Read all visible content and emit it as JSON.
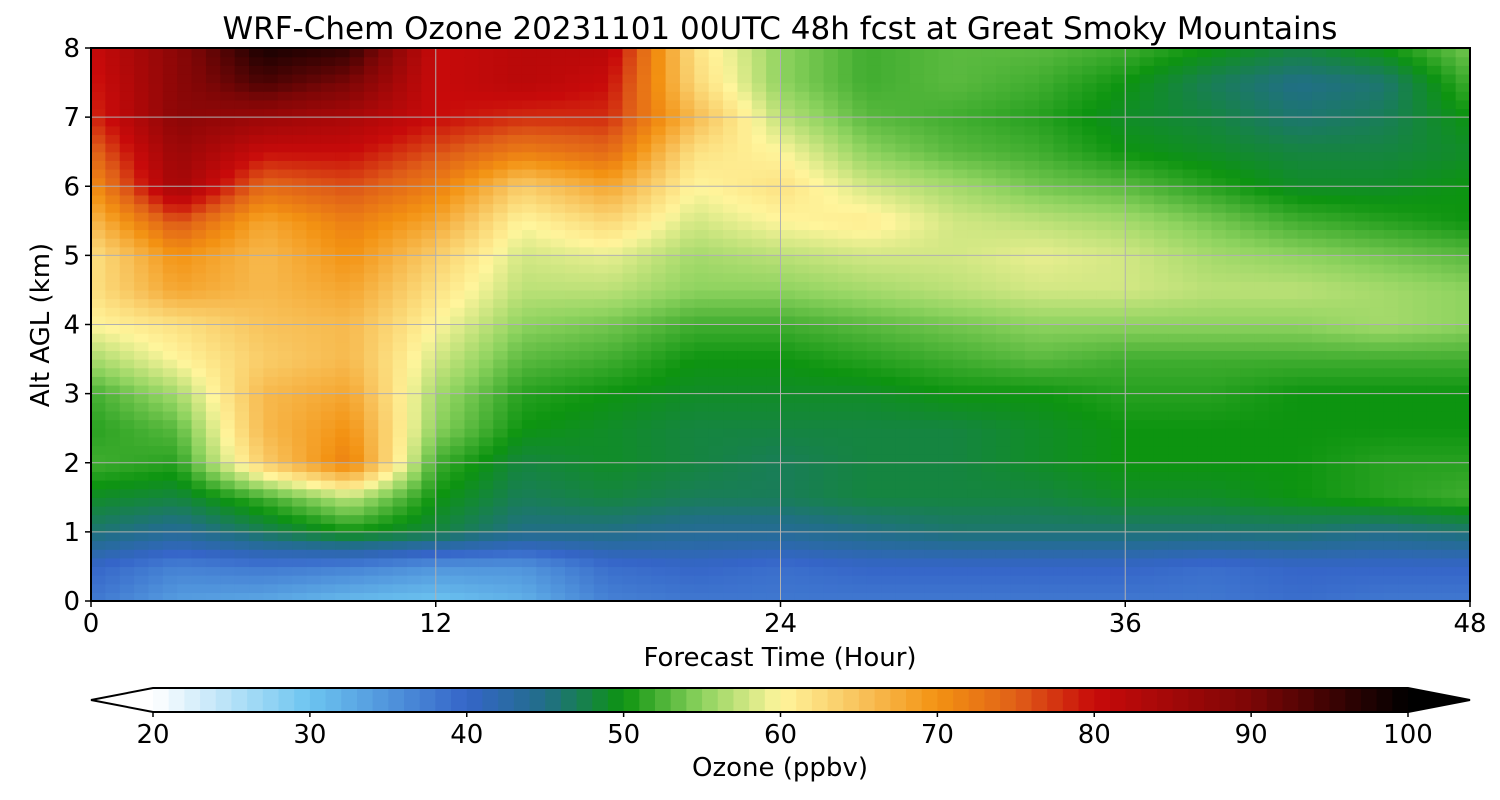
{
  "chart_data": {
    "type": "heatmap",
    "title": "WRF-Chem Ozone  20231101 00UTC 48h fcst at Great Smoky Mountains",
    "xlabel": "Forecast Time (Hour)",
    "ylabel": "Alt AGL (km)",
    "xlim": [
      0,
      48
    ],
    "ylim": [
      0,
      8
    ],
    "x_ticks": [
      "0",
      "12",
      "24",
      "36",
      "48"
    ],
    "y_ticks": [
      "0",
      "1",
      "2",
      "3",
      "4",
      "5",
      "6",
      "7",
      "8"
    ],
    "grid": true,
    "x": [
      0,
      3,
      6,
      9,
      12,
      15,
      18,
      21,
      24,
      27,
      30,
      33,
      36,
      39,
      42,
      45,
      48
    ],
    "y": [
      0,
      0.5,
      1,
      1.5,
      2,
      2.5,
      3,
      3.5,
      4,
      4.5,
      5,
      5.5,
      6,
      6.5,
      7,
      7.5,
      8
    ],
    "z": [
      [
        38,
        34,
        33,
        31,
        30,
        32,
        37,
        38,
        38,
        38,
        38,
        38,
        38,
        38,
        39,
        38,
        38
      ],
      [
        40,
        37,
        38,
        37,
        35,
        35,
        39,
        40,
        39,
        40,
        40,
        40,
        40,
        39,
        40,
        40,
        40
      ],
      [
        46,
        44,
        47,
        50,
        48,
        45,
        45,
        44,
        44,
        45,
        46,
        46,
        46,
        46,
        46,
        45,
        46
      ],
      [
        49,
        48,
        52,
        57,
        50,
        47,
        48,
        47,
        47,
        48,
        48,
        48,
        49,
        49,
        50,
        51,
        52
      ],
      [
        52,
        51,
        64,
        72,
        52,
        48,
        49,
        48,
        47,
        48,
        48,
        49,
        50,
        50,
        50,
        51,
        51
      ],
      [
        51,
        53,
        66,
        70,
        55,
        50,
        49,
        48,
        48,
        48,
        48,
        49,
        50,
        50,
        50,
        50,
        50
      ],
      [
        52,
        56,
        66,
        68,
        56,
        51,
        50,
        49,
        49,
        49,
        50,
        50,
        51,
        51,
        50,
        50,
        50
      ],
      [
        56,
        60,
        64,
        66,
        58,
        53,
        52,
        50,
        50,
        51,
        52,
        53,
        52,
        52,
        52,
        52,
        52
      ],
      [
        60,
        62,
        65,
        66,
        60,
        55,
        54,
        52,
        52,
        53,
        54,
        55,
        55,
        55,
        55,
        56,
        55
      ],
      [
        62,
        68,
        66,
        68,
        62,
        57,
        57,
        55,
        55,
        56,
        57,
        58,
        58,
        57,
        57,
        56,
        55
      ],
      [
        62,
        70,
        66,
        70,
        64,
        58,
        59,
        56,
        57,
        58,
        58,
        59,
        58,
        56,
        55,
        54,
        53
      ],
      [
        66,
        76,
        68,
        72,
        68,
        60,
        63,
        58,
        60,
        61,
        58,
        57,
        56,
        54,
        52,
        51,
        50
      ],
      [
        70,
        85,
        74,
        76,
        72,
        64,
        68,
        60,
        62,
        58,
        56,
        54,
        53,
        51,
        49,
        49,
        50
      ],
      [
        74,
        86,
        80,
        80,
        76,
        72,
        74,
        62,
        60,
        55,
        53,
        52,
        50,
        49,
        48,
        48,
        49
      ],
      [
        78,
        88,
        86,
        84,
        80,
        78,
        78,
        66,
        57,
        53,
        52,
        51,
        49,
        48,
        46,
        47,
        50
      ],
      [
        79,
        88,
        94,
        90,
        80,
        82,
        80,
        63,
        55,
        52,
        53,
        52,
        50,
        47,
        45,
        46,
        52
      ],
      [
        80,
        88,
        98,
        96,
        80,
        82,
        82,
        62,
        55,
        52,
        53,
        53,
        52,
        50,
        48,
        50,
        54
      ]
    ],
    "zlim": [
      20,
      100
    ],
    "colorbar": {
      "label": "Ozone  (ppbv)",
      "ticks": [
        "20",
        "30",
        "40",
        "50",
        "60",
        "70",
        "80",
        "90",
        "100"
      ],
      "tick_values": [
        20,
        30,
        40,
        50,
        60,
        70,
        80,
        90,
        100
      ],
      "extend": "both",
      "color_stops": [
        [
          20,
          "#ffffff"
        ],
        [
          30,
          "#6cc4f0"
        ],
        [
          40,
          "#3565c8"
        ],
        [
          45,
          "#216e88"
        ],
        [
          50,
          "#0d9410"
        ],
        [
          55,
          "#8ed35f"
        ],
        [
          60,
          "#fff59c"
        ],
        [
          65,
          "#f8c35c"
        ],
        [
          70,
          "#f39212"
        ],
        [
          75,
          "#e06018"
        ],
        [
          80,
          "#c80a0a"
        ],
        [
          90,
          "#7c0606"
        ],
        [
          100,
          "#000000"
        ]
      ]
    }
  }
}
